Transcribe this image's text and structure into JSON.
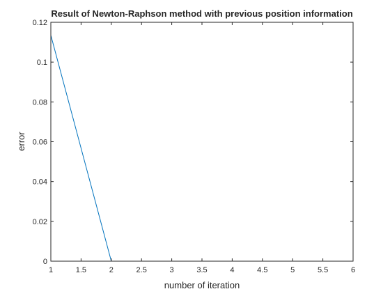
{
  "chart_data": {
    "type": "line",
    "title": "Result of Newton-Raphson method with previous position information",
    "xlabel": "number of iteration",
    "ylabel": "error",
    "xlim": [
      1,
      6
    ],
    "ylim": [
      0,
      0.12
    ],
    "x_ticks": [
      "1",
      "1.5",
      "2",
      "2.5",
      "3",
      "3.5",
      "4",
      "4.5",
      "5",
      "5.5",
      "6"
    ],
    "y_ticks": [
      "0",
      "0.02",
      "0.04",
      "0.06",
      "0.08",
      "0.1",
      "0.12"
    ],
    "grid": false,
    "series": [
      {
        "x": [
          1,
          2,
          3,
          4,
          5,
          6
        ],
        "y": [
          0.1135,
          0,
          0,
          0,
          0,
          0
        ],
        "color": "#0072BD"
      }
    ]
  }
}
